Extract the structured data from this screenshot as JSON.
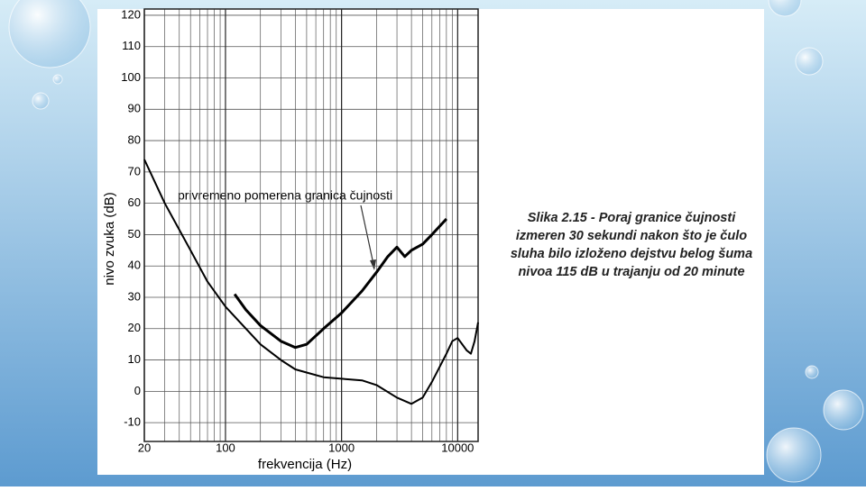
{
  "chart_data": {
    "type": "line",
    "xscale": "log",
    "grid": true,
    "xlabel": "frekvencija (Hz)",
    "ylabel": "nivo zvuka (dB)",
    "annotation": "privremeno pomerena granica čujnosti",
    "caption": [
      "Slika 2.15 - Poraj granice čujnosti",
      "izmeren 30 sekundi nakon što je čulo",
      "sluha bilo izloženo dejstvu belog šuma",
      "nivoa 115 dB u trajanju od 20 minute"
    ],
    "xlim": [
      20,
      15000
    ],
    "ylim": [
      -16,
      122
    ],
    "xticks": [
      20,
      100,
      1000,
      10000
    ],
    "yticks": [
      -10,
      0,
      10,
      20,
      30,
      40,
      50,
      60,
      70,
      80,
      90,
      100,
      110,
      120
    ],
    "series": [
      {
        "color": "#000000",
        "x": [
          20,
          30,
          50,
          70,
          100,
          150,
          200,
          300,
          400,
          500,
          700,
          1000,
          1500,
          2000,
          3000,
          4000,
          5000,
          6000,
          8000,
          9000,
          10000,
          12000,
          13000,
          14000,
          15000
        ],
        "values": [
          74,
          60,
          45,
          35,
          27,
          20,
          15,
          10,
          7,
          6,
          4.5,
          4,
          3.5,
          2,
          -2,
          -4,
          -2,
          3,
          12,
          16,
          17,
          13,
          12,
          16,
          22
        ]
      },
      {
        "color": "#000000",
        "x": [
          120,
          150,
          200,
          300,
          400,
          500,
          700,
          1000,
          1500,
          2000,
          2500,
          3000,
          3500,
          4000,
          5000,
          6000,
          8000
        ],
        "values": [
          31,
          26,
          21,
          16,
          14,
          15,
          20,
          25,
          32,
          38,
          43,
          46,
          43,
          45,
          47,
          50,
          55
        ]
      }
    ]
  }
}
